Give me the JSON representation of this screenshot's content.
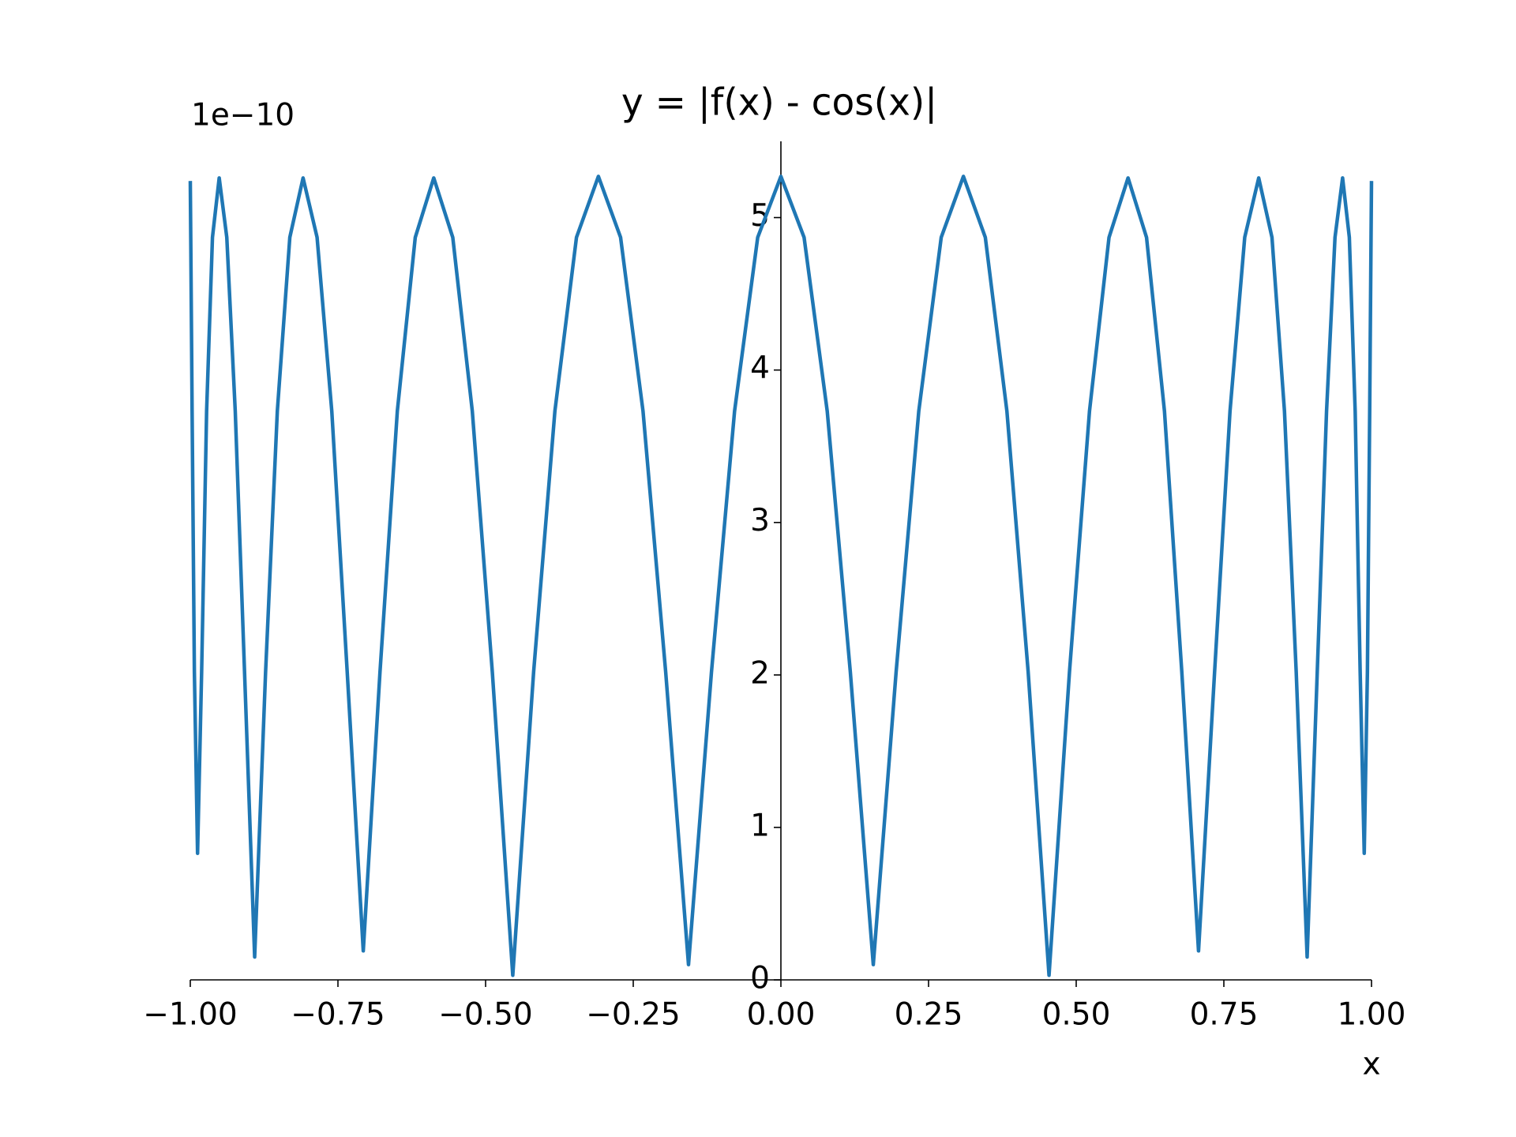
{
  "chart_data": {
    "type": "line",
    "title": "y = |f(x) - cos(x)|",
    "xlabel": "x",
    "offset_text": "1e−10",
    "color": "#1f77b4",
    "x": [
      -1.0,
      -0.99923,
      -0.99692,
      -0.99307,
      -0.98769,
      -0.98079,
      -0.97237,
      -0.96246,
      -0.95106,
      -0.93819,
      -0.92388,
      -0.90814,
      -0.89101,
      -0.8725,
      -0.85264,
      -0.83147,
      -0.80902,
      -0.78532,
      -0.76041,
      -0.73432,
      -0.70711,
      -0.6788,
      -0.64945,
      -0.61909,
      -0.58779,
      -0.55557,
      -0.5225,
      -0.48862,
      -0.45399,
      -0.41866,
      -0.38268,
      -0.34611,
      -0.30902,
      -0.27144,
      -0.23345,
      -0.19509,
      -0.15643,
      -0.11754,
      -0.07846,
      -0.03926,
      0,
      0.03926,
      0.07846,
      0.11754,
      0.15643,
      0.19509,
      0.23345,
      0.27144,
      0.30902,
      0.34611,
      0.38268,
      0.41866,
      0.45399,
      0.48862,
      0.5225,
      0.55557,
      0.58779,
      0.61909,
      0.64945,
      0.6788,
      0.70711,
      0.73432,
      0.76041,
      0.78532,
      0.80902,
      0.83147,
      0.85264,
      0.8725,
      0.89101,
      0.90814,
      0.92388,
      0.93819,
      0.95106,
      0.96246,
      0.97237,
      0.98079,
      0.98769,
      0.99307,
      0.99692,
      0.99923,
      1.0
    ],
    "values": [
      5.24,
      4.87,
      3.73,
      2.02,
      0.83,
      2.02,
      3.73,
      4.87,
      5.26,
      4.87,
      3.73,
      2.02,
      0.15,
      2.02,
      3.73,
      4.87,
      5.26,
      4.87,
      3.73,
      2.02,
      0.19,
      2.02,
      3.73,
      4.87,
      5.26,
      4.87,
      3.73,
      2.02,
      0.03,
      2.02,
      3.73,
      4.87,
      5.27,
      4.87,
      3.73,
      2.02,
      0.1,
      2.02,
      3.73,
      4.87,
      5.27,
      4.87,
      3.73,
      2.02,
      0.1,
      2.02,
      3.73,
      4.87,
      5.27,
      4.87,
      3.73,
      2.02,
      0.03,
      2.02,
      3.73,
      4.87,
      5.26,
      4.87,
      3.73,
      2.02,
      0.19,
      2.02,
      3.73,
      4.87,
      5.26,
      4.87,
      3.73,
      2.02,
      0.15,
      2.02,
      3.73,
      4.87,
      5.26,
      4.87,
      3.73,
      2.02,
      0.83,
      2.02,
      3.73,
      4.87,
      5.24
    ],
    "xlim": [
      -1,
      1
    ],
    "ylim": [
      0,
      5.5
    ],
    "xticks": [
      {
        "value": -1,
        "label": "−1.00"
      },
      {
        "value": -0.75,
        "label": "−0.75"
      },
      {
        "value": -0.5,
        "label": "−0.50"
      },
      {
        "value": -0.25,
        "label": "−0.25"
      },
      {
        "value": 0,
        "label": "0.00"
      },
      0.25,
      {
        "value": 0.5,
        "label": "0.50"
      },
      0.75,
      {
        "value": 1,
        "label": "1.00"
      }
    ],
    "yticks": [
      0,
      1,
      2,
      3,
      4,
      5
    ]
  }
}
